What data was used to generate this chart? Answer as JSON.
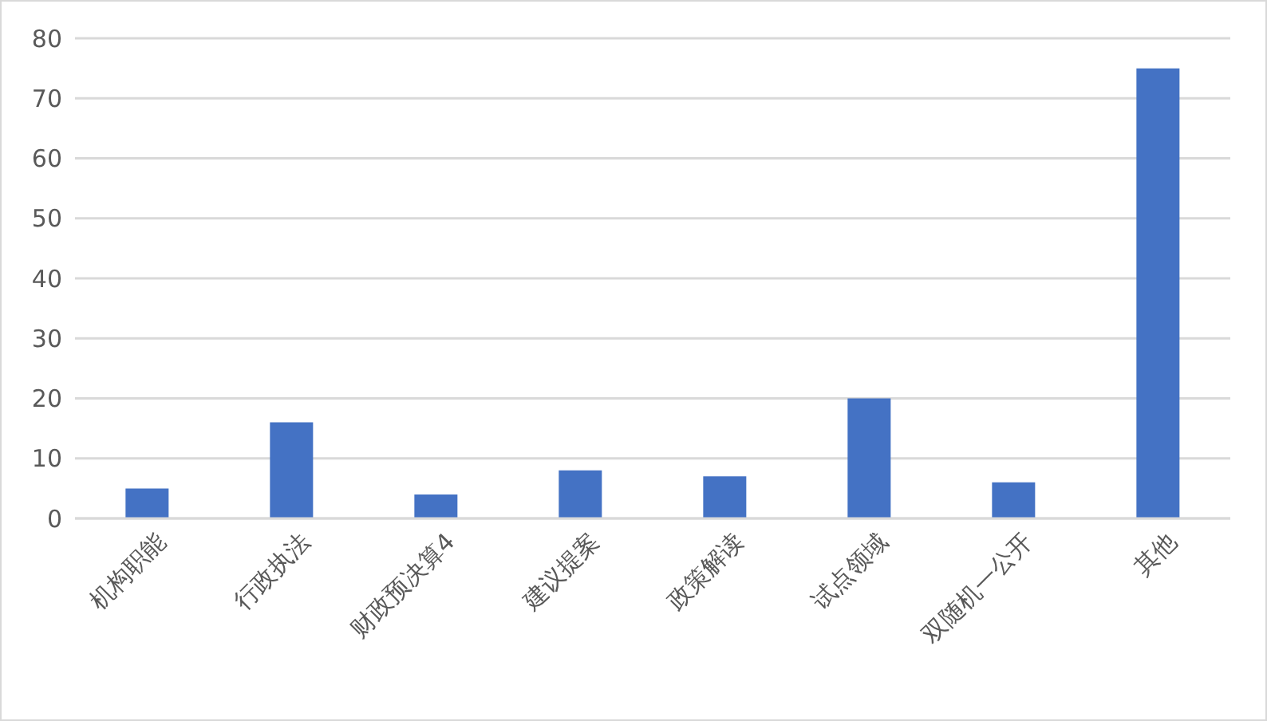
{
  "chart_data": {
    "type": "bar",
    "categories": [
      "机构职能",
      "行政执法",
      "财政预决算4",
      "建议提案",
      "政策解读",
      "试点领域",
      "双随机一公开",
      "其他"
    ],
    "values": [
      5,
      16,
      4,
      8,
      7,
      20,
      6,
      75
    ],
    "color": "#4472c4",
    "ylim": [
      0,
      80
    ],
    "yticks": [
      0,
      10,
      20,
      30,
      40,
      50,
      60,
      70,
      80
    ],
    "grid": "y"
  }
}
